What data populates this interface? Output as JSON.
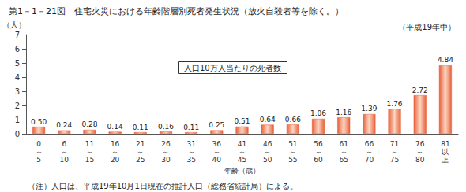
{
  "chart_data": {
    "type": "bar",
    "title": "第1－1－21図　住宅火災における年齢階層別死者発生状況（放火自殺者等を除く。）",
    "subtitle": "（平成19年中）",
    "annotations": [
      "人口10万人当たりの死者数"
    ],
    "caption": "（注）人口は、平成19年10月1日現在の推計人口（総務省統計局）による。",
    "x_label": "年齢（歳）",
    "y_label": "（人）",
    "categories": [
      "0～5",
      "6～10",
      "11～15",
      "16～20",
      "21～25",
      "26～30",
      "31～35",
      "36～40",
      "41～45",
      "46～50",
      "51～55",
      "56～60",
      "61～65",
      "66～70",
      "71～75",
      "76～80",
      "81以上"
    ],
    "values": [
      0.5,
      0.24,
      0.28,
      0.14,
      0.11,
      0.16,
      0.11,
      0.25,
      0.51,
      0.64,
      0.66,
      1.06,
      1.16,
      1.39,
      1.76,
      2.72,
      4.84
    ],
    "value_labels": [
      "0.50",
      "0.24",
      "0.28",
      "0.14",
      "0.11",
      "0.16",
      "0.11",
      "0.25",
      "0.51",
      "0.64",
      "0.66",
      "1.06",
      "1.16",
      "1.39",
      "1.76",
      "2.72",
      "4.84"
    ],
    "data_labels": true,
    "color": "#e8603a",
    "ylim": [
      0,
      7
    ],
    "yticks": [
      0,
      1,
      2,
      3,
      4,
      5,
      6,
      7
    ],
    "grid": false
  }
}
